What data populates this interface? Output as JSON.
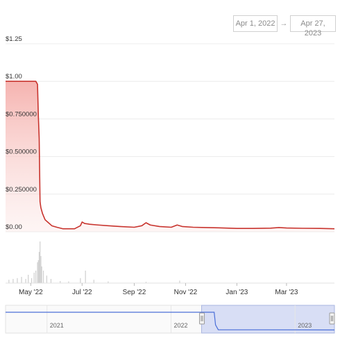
{
  "date_range": {
    "start": "Apr 1, 2022",
    "arrow": "→",
    "end": "Apr 27, 2023"
  },
  "colors": {
    "line": "#c8332d",
    "area_top": "#f4a6a2",
    "volume": "#cfcfcf",
    "navigator_line": "#4a6fd8",
    "navigator_selection": "#c9d2f2",
    "grid": "#ececec"
  },
  "chart_data": {
    "type": "area",
    "y_tick_labels": [
      "$1.25",
      "$1.00",
      "$0.750000",
      "$0.500000",
      "$0.250000",
      "$0.00"
    ],
    "y_tick_values": [
      1.25,
      1.0,
      0.75,
      0.5,
      0.25,
      0.0
    ],
    "ylim": [
      0,
      1.25
    ],
    "x_tick_labels": [
      "May '22",
      "Jul '22",
      "Sep '22",
      "Nov '22",
      "Jan '23",
      "Mar '23"
    ],
    "x_tick_dates": [
      "2022-05-01",
      "2022-07-01",
      "2022-09-01",
      "2022-11-01",
      "2023-01-01",
      "2023-03-01"
    ],
    "xlim": [
      "2022-04-01",
      "2023-04-27"
    ],
    "grid": true,
    "series": [
      {
        "x": [
          "2022-04-01",
          "2022-04-15",
          "2022-05-01",
          "2022-05-07",
          "2022-05-09",
          "2022-05-10",
          "2022-05-11",
          "2022-05-12",
          "2022-05-13",
          "2022-05-15",
          "2022-05-18",
          "2022-05-22",
          "2022-05-26",
          "2022-06-01",
          "2022-06-08",
          "2022-06-15",
          "2022-06-22",
          "2022-06-29",
          "2022-07-01",
          "2022-07-04",
          "2022-07-10",
          "2022-07-20",
          "2022-08-01",
          "2022-08-15",
          "2022-09-01",
          "2022-09-10",
          "2022-09-15",
          "2022-09-20",
          "2022-10-01",
          "2022-10-15",
          "2022-10-22",
          "2022-10-28",
          "2022-11-10",
          "2022-11-25",
          "2022-12-10",
          "2023-01-01",
          "2023-01-20",
          "2023-02-10",
          "2023-02-20",
          "2023-03-01",
          "2023-03-20",
          "2023-04-10",
          "2023-04-27"
        ],
        "values": [
          1.0,
          1.0,
          1.0,
          1.0,
          0.98,
          0.77,
          0.62,
          0.2,
          0.16,
          0.12,
          0.08,
          0.06,
          0.04,
          0.03,
          0.02,
          0.02,
          0.02,
          0.04,
          0.065,
          0.055,
          0.05,
          0.045,
          0.04,
          0.035,
          0.03,
          0.04,
          0.06,
          0.045,
          0.035,
          0.03,
          0.045,
          0.035,
          0.03,
          0.028,
          0.026,
          0.022,
          0.022,
          0.024,
          0.028,
          0.025,
          0.023,
          0.022,
          0.02
        ]
      }
    ],
    "volume": {
      "x": [
        "2022-04-05",
        "2022-04-10",
        "2022-04-15",
        "2022-04-20",
        "2022-04-25",
        "2022-04-28",
        "2022-05-02",
        "2022-05-05",
        "2022-05-07",
        "2022-05-09",
        "2022-05-10",
        "2022-05-11",
        "2022-05-12",
        "2022-05-13",
        "2022-05-14",
        "2022-05-16",
        "2022-05-20",
        "2022-05-25",
        "2022-06-05",
        "2022-06-15",
        "2022-06-29",
        "2022-07-05",
        "2022-07-15",
        "2022-08-01",
        "2022-09-15",
        "2022-10-25"
      ],
      "values": [
        0.08,
        0.1,
        0.12,
        0.15,
        0.1,
        0.2,
        0.12,
        0.25,
        0.3,
        0.5,
        0.55,
        0.75,
        1.0,
        0.65,
        0.4,
        0.3,
        0.18,
        0.1,
        0.05,
        0.04,
        0.12,
        0.3,
        0.08,
        0.04,
        0.03,
        0.06
      ]
    },
    "navigator": {
      "labels": [
        "2021",
        "2022",
        "2023"
      ],
      "label_dates": [
        "2021-01-01",
        "2022-01-01",
        "2023-01-01"
      ],
      "xlim": [
        "2020-09-01",
        "2023-04-27"
      ],
      "selection": [
        "2022-04-01",
        "2023-04-27"
      ],
      "line": {
        "x": [
          "2020-09-01",
          "2021-06-01",
          "2022-01-01",
          "2022-05-01",
          "2022-05-08",
          "2022-05-12",
          "2022-05-20",
          "2023-04-27"
        ],
        "values": [
          1.0,
          1.0,
          1.0,
          1.0,
          1.0,
          0.3,
          0.03,
          0.02
        ]
      }
    }
  }
}
